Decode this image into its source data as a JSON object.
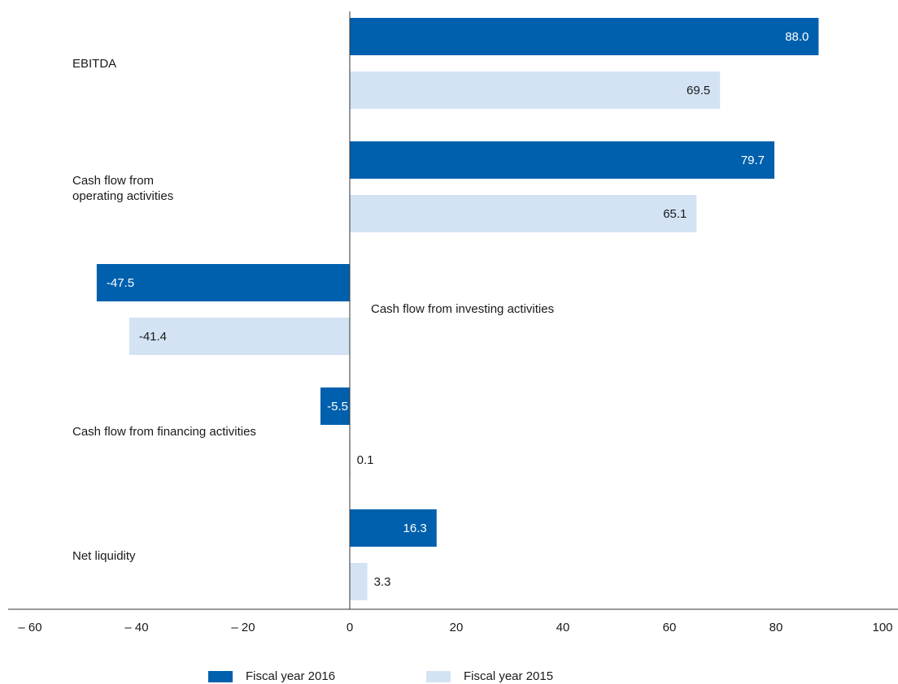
{
  "chart_data": {
    "type": "bar",
    "orientation": "horizontal",
    "categories": [
      "EBITDA",
      "Cash flow from\noperating activities",
      "Cash flow from investing activities",
      "Cash flow from financing activities",
      "Net liquidity"
    ],
    "series": [
      {
        "name": "Fiscal year 2016",
        "color": "#0060ad",
        "values": [
          88.0,
          79.7,
          -47.5,
          -5.5,
          16.3
        ]
      },
      {
        "name": "Fiscal year 2015",
        "color": "#d3e3f4",
        "values": [
          69.5,
          65.1,
          -41.4,
          0.1,
          3.3
        ]
      }
    ],
    "value_labels": [
      [
        "88.0",
        "79.7",
        "-47.5",
        "-5.5",
        "16.3"
      ],
      [
        "69.5",
        "65.1",
        "-41.4",
        "0.1",
        "3.3"
      ]
    ],
    "xlim": [
      -65,
      100
    ],
    "x_ticks": [
      -60,
      -40,
      -20,
      0,
      20,
      40,
      60,
      80,
      100
    ],
    "x_tick_labels": [
      "– 60",
      "– 40",
      "– 20",
      "0",
      "20",
      "40",
      "60",
      "80",
      "100"
    ],
    "grid": false,
    "legend_position": "bottom"
  }
}
